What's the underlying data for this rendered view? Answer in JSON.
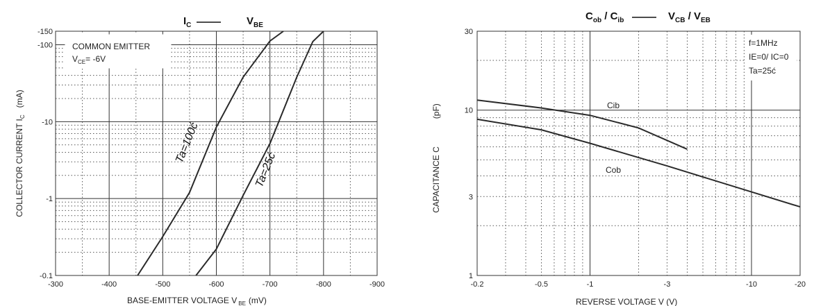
{
  "chart_data": [
    {
      "type": "line",
      "title": "IC —— VBE",
      "title_parts": {
        "i": "I",
        "i_sub": "C",
        "v": "V",
        "v_sub": "BE"
      },
      "xlabel": "BASE-EMITTER VOLTAGE V",
      "xlabel_sub": "BE",
      "xlabel_unit": "(mV)",
      "ylabel": "COLLECTOR CURRENT    I",
      "ylabel_sub": "C",
      "ylabel_unit": "(mA)",
      "x_ticks": [
        "-300",
        "-400",
        "-500",
        "-600",
        "-700",
        "-800",
        "-900"
      ],
      "y_ticks": [
        "-0.1",
        "-1",
        "-10",
        "-100",
        "-150"
      ],
      "xlim": [
        -300,
        -900
      ],
      "ylim": [
        -0.1,
        -150
      ],
      "y_scale": "log",
      "legend_box": {
        "line1": "COMMON EMITTER",
        "line2_main": "V",
        "line2_sub": "CE",
        "line2_rest": "= -6V"
      },
      "series": [
        {
          "name": "Ta=100ć",
          "x": [
            -453,
            -500,
            -550,
            -600,
            -650,
            -700,
            -725
          ],
          "y": [
            -0.1,
            -0.32,
            -1.2,
            -8.5,
            -38,
            -112,
            -150
          ]
        },
        {
          "name": "Ta=25ć",
          "x": [
            -562,
            -600,
            -650,
            -700,
            -750,
            -780,
            -800
          ],
          "y": [
            -0.1,
            -0.22,
            -1.1,
            -5.2,
            -38,
            -110,
            -150
          ]
        }
      ]
    },
    {
      "type": "line",
      "title": "Cob / Cib —— VCB / VEB",
      "title_parts": {
        "c1": "C",
        "c1_sub": "ob",
        "c2": "C",
        "c2_sub": "ib",
        "v1": "V",
        "v1_sub": "CB",
        "v2": "V",
        "v2_sub": "EB"
      },
      "xlabel": "REVERSE VOLTAGE    V    (V)",
      "ylabel": "CAPACITANCE  C",
      "ylabel_unit": "(pF)",
      "x_ticks": [
        "-0.2",
        "-0.5",
        "-1",
        "-3",
        "-10",
        "-20"
      ],
      "y_ticks": [
        "1",
        "3",
        "10",
        "30"
      ],
      "xlim": [
        -0.2,
        -20
      ],
      "ylim": [
        1,
        30
      ],
      "x_scale": "log",
      "y_scale": "log",
      "conditions": {
        "line1": "f=1MHz",
        "line2": "IE=0/ IC=0",
        "line3": "Ta=25ć"
      },
      "series": [
        {
          "name": "Cib",
          "x": [
            -0.2,
            -0.5,
            -1,
            -2,
            -4
          ],
          "y": [
            11.5,
            10.3,
            9.3,
            7.8,
            5.8
          ]
        },
        {
          "name": "Cob",
          "x": [
            -0.2,
            -0.5,
            -1,
            -3,
            -10,
            -20
          ],
          "y": [
            8.8,
            7.6,
            6.3,
            4.6,
            3.2,
            2.6
          ]
        }
      ]
    }
  ]
}
